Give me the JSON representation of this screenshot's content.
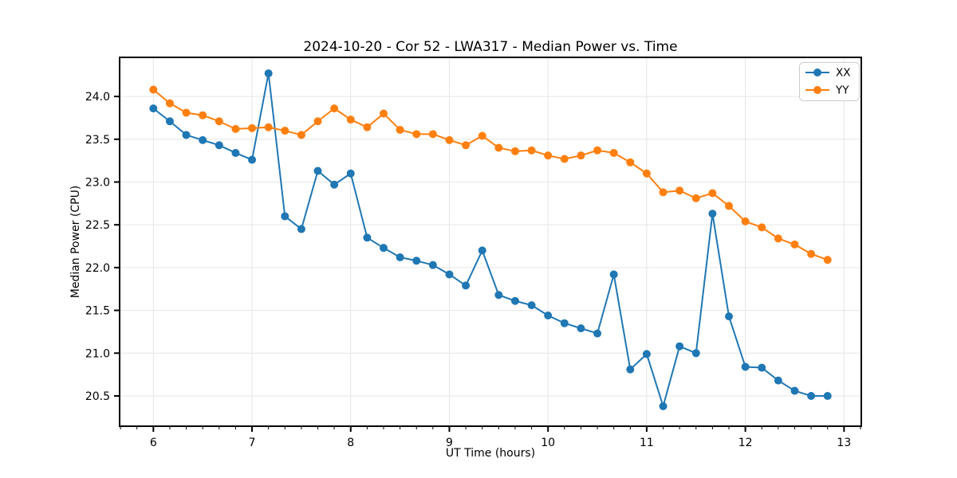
{
  "figure": {
    "background": "#ffffff"
  },
  "chart_data": {
    "type": "line",
    "title": "2024-10-20 - Cor 52 - LWA317 - Median Power vs. Time",
    "xlabel": "UT Time (hours)",
    "ylabel": "Median Power (CPU)",
    "xlim": [
      5.658,
      13.175
    ],
    "ylim": [
      20.146,
      24.457
    ],
    "xticks": [
      6,
      7,
      8,
      9,
      10,
      11,
      12,
      13
    ],
    "yticks": [
      20.5,
      21.0,
      21.5,
      22.0,
      22.5,
      23.0,
      23.5,
      24.0
    ],
    "x_minor_tick_interval": 0.166667,
    "grid": true,
    "grid_color": "#e6e6e6",
    "spine_color": "#000000",
    "legend": {
      "position": "upper right",
      "entries": [
        "XX",
        "YY"
      ]
    },
    "x": [
      6.0,
      6.1667,
      6.3333,
      6.5,
      6.6667,
      6.8333,
      7.0,
      7.1667,
      7.3333,
      7.5,
      7.6667,
      7.8333,
      8.0,
      8.1667,
      8.3333,
      8.5,
      8.6667,
      8.8333,
      9.0,
      9.1667,
      9.3333,
      9.5,
      9.6667,
      9.8333,
      10.0,
      10.1667,
      10.3333,
      10.5,
      10.6667,
      10.8333,
      11.0,
      11.1667,
      11.3333,
      11.5,
      11.6667,
      11.8333,
      12.0,
      12.1667,
      12.3333,
      12.5,
      12.6667,
      12.8333
    ],
    "series": [
      {
        "name": "XX",
        "color": "#1f77b4",
        "values": [
          23.86,
          23.71,
          23.55,
          23.49,
          23.43,
          23.34,
          23.26,
          24.27,
          22.6,
          22.45,
          23.13,
          22.97,
          23.1,
          22.35,
          22.23,
          22.12,
          22.08,
          22.03,
          21.92,
          21.79,
          22.2,
          21.68,
          21.61,
          21.56,
          21.44,
          21.35,
          21.29,
          21.23,
          21.92,
          20.81,
          20.99,
          20.38,
          21.08,
          21.0,
          22.63,
          21.43,
          20.84,
          20.83,
          20.68,
          20.56,
          20.5,
          20.5
        ]
      },
      {
        "name": "YY",
        "color": "#ff7f0e",
        "values": [
          24.08,
          23.92,
          23.81,
          23.78,
          23.71,
          23.62,
          23.63,
          23.64,
          23.6,
          23.55,
          23.71,
          23.86,
          23.73,
          23.64,
          23.8,
          23.61,
          23.56,
          23.56,
          23.49,
          23.43,
          23.54,
          23.4,
          23.36,
          23.37,
          23.31,
          23.27,
          23.31,
          23.37,
          23.34,
          23.23,
          23.1,
          22.88,
          22.9,
          22.81,
          22.87,
          22.72,
          22.54,
          22.47,
          22.34,
          22.27,
          22.16,
          22.09
        ]
      }
    ]
  }
}
